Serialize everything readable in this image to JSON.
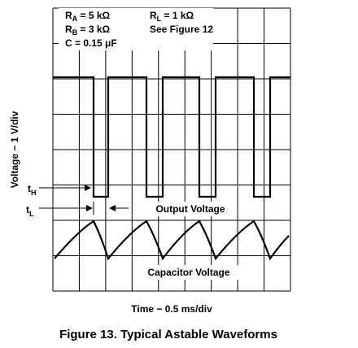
{
  "params": [
    {
      "base": "R",
      "sub": "A",
      "rest": " = 5 kΩ"
    },
    {
      "base": "R",
      "sub": "B",
      "rest": " = 3 kΩ"
    },
    {
      "base": "C = 0.15 μF",
      "sub": "",
      "rest": ""
    },
    {
      "base": "R",
      "sub": "L",
      "rest": " = 1 kΩ"
    },
    {
      "base": "See Figure 12",
      "sub": "",
      "rest": ""
    }
  ],
  "annotations": {
    "t_high": {
      "base": "t",
      "sub": "H"
    },
    "t_low": {
      "base": "t",
      "sub": "L"
    },
    "output": "Output Voltage",
    "capacitor": "Capacitor Voltage"
  },
  "y_axis_label": "Voltage − 1 V/div",
  "x_axis_label": "Time − 0.5 ms/div",
  "caption": "Figure 13. Typical Astable Waveforms"
}
